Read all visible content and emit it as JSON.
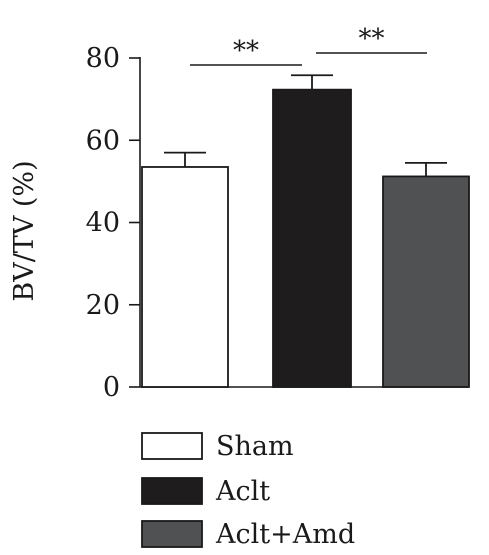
{
  "chart_data": {
    "type": "bar",
    "categories": [
      "Sham",
      "Aclt",
      "Aclt+Amd"
    ],
    "values": [
      53.5,
      72.3,
      51.2
    ],
    "errors": [
      3.5,
      3.5,
      3.3
    ],
    "colors": [
      "#ffffff",
      "#1f1c1d",
      "#505153"
    ],
    "ylabel": "BV/TV (%)",
    "ylim": [
      0,
      80
    ],
    "yticks": [
      0,
      20,
      40,
      60,
      80
    ],
    "grid": false,
    "legend_position": "bottom-left",
    "legend": [
      "Sham",
      "Aclt",
      "Aclt+Amd"
    ],
    "significance": [
      {
        "from": 0,
        "to": 1,
        "label": "**"
      },
      {
        "from": 1,
        "to": 2,
        "label": "**"
      }
    ]
  }
}
